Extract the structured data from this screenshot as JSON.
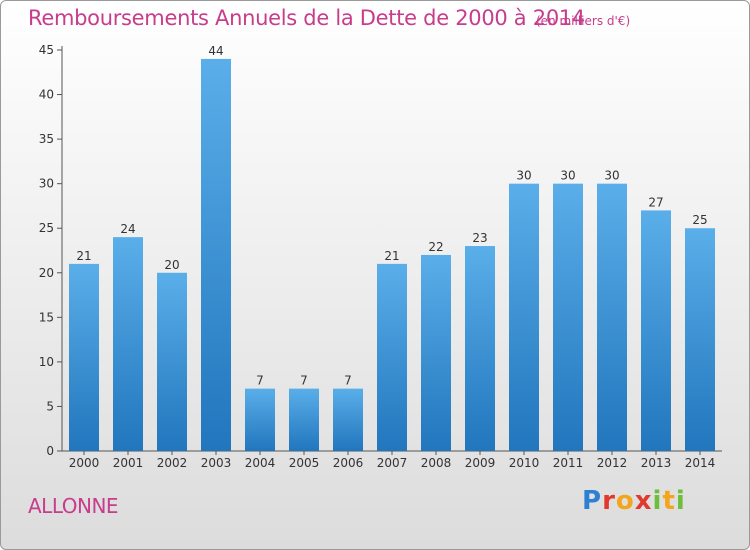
{
  "header": {
    "title": "Remboursements Annuels de la Dette de 2000 à 2014",
    "unit": "(en milliers d'€)"
  },
  "footer": {
    "commune": "ALLONNE",
    "logo_text": "Proxiti"
  },
  "colors": {
    "title": "#c83c8c",
    "bar_light": "#5aaee9",
    "bar_dark": "#2176bd",
    "axis": "#555555"
  },
  "chart_data": {
    "type": "bar",
    "title": "Remboursements Annuels de la Dette de 2000 à 2014",
    "subtitle": "(en milliers d'€)",
    "xlabel": "",
    "ylabel": "",
    "categories": [
      "2000",
      "2001",
      "2002",
      "2003",
      "2004",
      "2005",
      "2006",
      "2007",
      "2008",
      "2009",
      "2010",
      "2011",
      "2012",
      "2013",
      "2014"
    ],
    "values": [
      21,
      24,
      20,
      44,
      7,
      7,
      7,
      21,
      22,
      23,
      30,
      30,
      30,
      27,
      25
    ],
    "ylim": [
      0,
      45
    ],
    "yticks": [
      0,
      5,
      10,
      15,
      20,
      25,
      30,
      35,
      40,
      45
    ],
    "grid": false,
    "legend": "none",
    "data_labels": true
  }
}
